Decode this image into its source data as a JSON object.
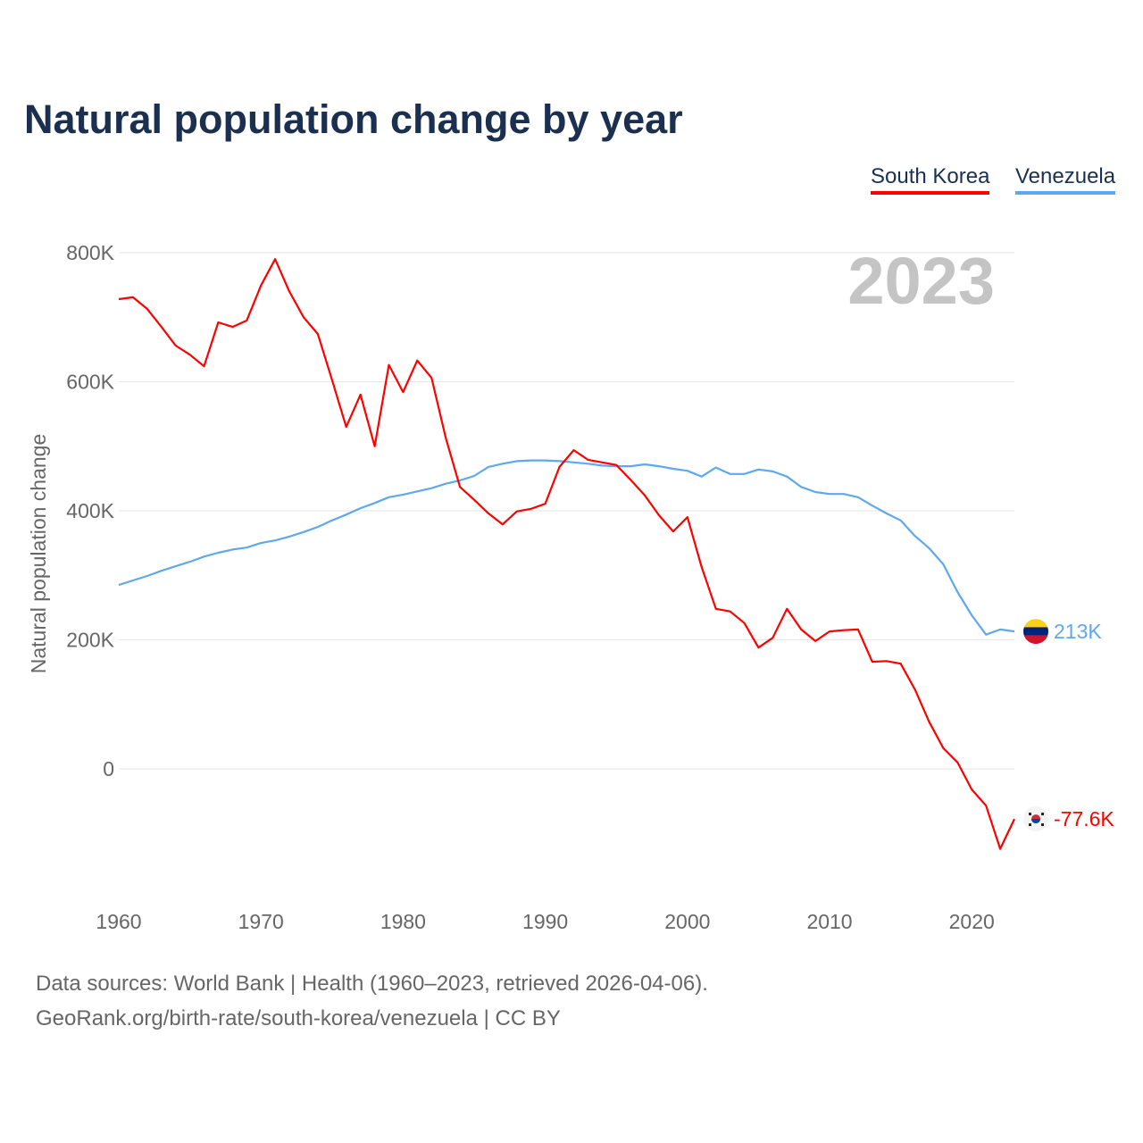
{
  "chart_data": {
    "type": "line",
    "title": "Natural population change by year",
    "xlabel": "",
    "ylabel": "Natural population change",
    "ylim": [
      -200000,
      800000
    ],
    "xlim": [
      1960,
      2023
    ],
    "yticks": [
      0,
      200000,
      400000,
      600000,
      800000
    ],
    "ytick_labels": [
      "0",
      "200K",
      "400K",
      "600K",
      "800K"
    ],
    "xticks": [
      1960,
      1970,
      1980,
      1990,
      2000,
      2010,
      2020
    ],
    "xtick_labels": [
      "1960",
      "1970",
      "1980",
      "1990",
      "2000",
      "2010",
      "2020"
    ],
    "grid": true,
    "legend_position": "top-right",
    "year_label": "2023",
    "x": [
      1960,
      1961,
      1962,
      1963,
      1964,
      1965,
      1966,
      1967,
      1968,
      1969,
      1970,
      1971,
      1972,
      1973,
      1974,
      1975,
      1976,
      1977,
      1978,
      1979,
      1980,
      1981,
      1982,
      1983,
      1984,
      1985,
      1986,
      1987,
      1988,
      1989,
      1990,
      1991,
      1992,
      1993,
      1994,
      1995,
      1996,
      1997,
      1998,
      1999,
      2000,
      2001,
      2002,
      2003,
      2004,
      2005,
      2006,
      2007,
      2008,
      2009,
      2010,
      2011,
      2012,
      2013,
      2014,
      2015,
      2016,
      2017,
      2018,
      2019,
      2020,
      2021,
      2022,
      2023
    ],
    "series": [
      {
        "name": "South Korea",
        "color": "#ff0000",
        "end_label": "-77.6K",
        "flag": "south-korea-flag",
        "values": [
          728000,
          731000,
          713000,
          685000,
          656000,
          642000,
          624000,
          692000,
          685000,
          695000,
          749000,
          790000,
          740000,
          700000,
          674000,
          603000,
          530000,
          580000,
          500000,
          626000,
          584000,
          633000,
          606000,
          513000,
          437000,
          417000,
          396000,
          379000,
          399000,
          403000,
          411000,
          468000,
          494000,
          479000,
          475000,
          471000,
          448000,
          424000,
          393000,
          368000,
          390000,
          313000,
          248000,
          244000,
          226000,
          188000,
          203000,
          248000,
          216000,
          198000,
          213000,
          215000,
          216000,
          166000,
          167000,
          163000,
          123000,
          73000,
          32000,
          10000,
          -32000,
          -57000,
          -124000,
          -77600
        ]
      },
      {
        "name": "Venezuela",
        "color": "#5fa8ee",
        "end_label": "213K",
        "flag": "venezuela-flag",
        "values": [
          285000,
          292000,
          299000,
          307000,
          314000,
          321000,
          329000,
          335000,
          340000,
          343000,
          350000,
          354000,
          360000,
          367000,
          375000,
          385000,
          394000,
          404000,
          412000,
          421000,
          425000,
          430000,
          435000,
          442000,
          447000,
          454000,
          468000,
          473000,
          477000,
          478000,
          478000,
          477000,
          475000,
          473000,
          470000,
          469000,
          469000,
          472000,
          469000,
          465000,
          462000,
          453000,
          467000,
          457000,
          457000,
          464000,
          461000,
          453000,
          437000,
          429000,
          426000,
          426000,
          421000,
          408000,
          396000,
          385000,
          361000,
          342000,
          317000,
          274000,
          238000,
          208000,
          216000,
          213000
        ]
      }
    ]
  },
  "footer": {
    "line1": "Data sources: World Bank | Health (1960–2023, retrieved 2026-04-06).",
    "line2": "GeoRank.org/birth-rate/south-korea/venezuela | CC BY"
  }
}
